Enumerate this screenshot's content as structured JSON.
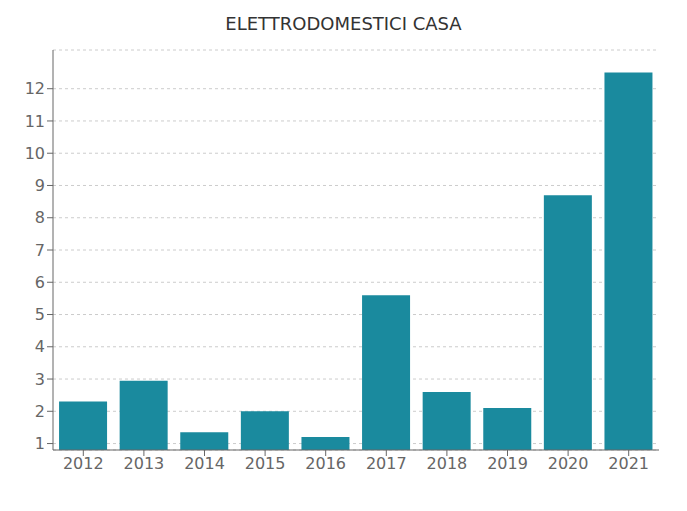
{
  "chart_data": {
    "type": "bar",
    "title": "ELETTRODOMESTICI CASA",
    "categories": [
      "2012",
      "2013",
      "2014",
      "2015",
      "2016",
      "2017",
      "2018",
      "2019",
      "2020",
      "2021"
    ],
    "values": [
      2.3,
      2.95,
      1.35,
      2.0,
      1.2,
      5.6,
      2.6,
      2.1,
      8.7,
      12.5
    ],
    "color": "#1a8a9e",
    "ylim": [
      0.8,
      13.2
    ],
    "yticks": [
      1,
      2,
      3,
      4,
      5,
      6,
      7,
      8,
      9,
      10,
      11,
      12
    ],
    "grid": true
  }
}
